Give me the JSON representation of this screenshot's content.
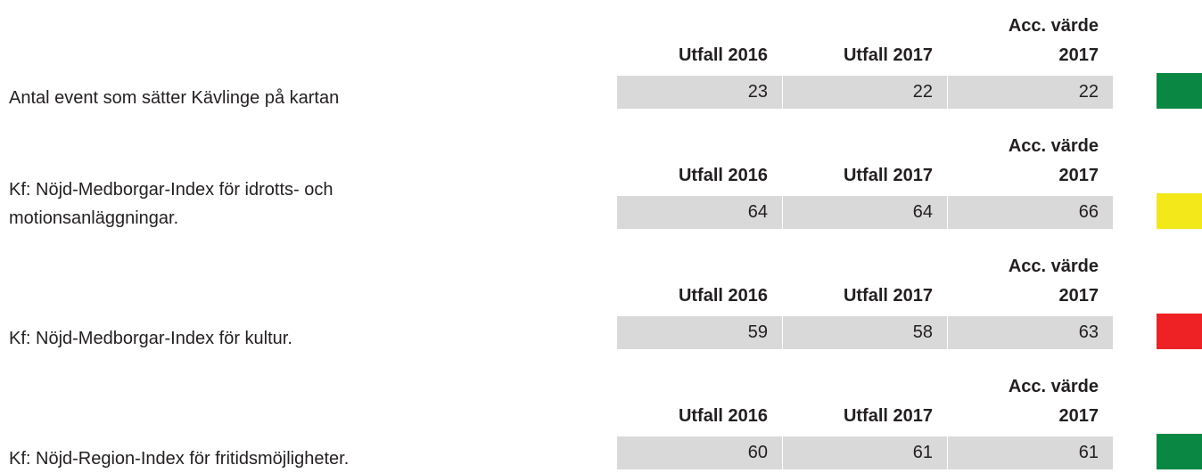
{
  "rows": [
    {
      "label": "Antal event som sätter Kävlinge på kartan",
      "headers": [
        "Utfall 2016",
        "Utfall 2017",
        "Acc. värde 2017"
      ],
      "values": [
        23,
        22,
        22
      ],
      "status_color": "#0a8843"
    },
    {
      "label": "Kf: Nöjd-Medborgar-Index för idrotts- och motionsanläggningar.",
      "headers": [
        "Utfall 2016",
        "Utfall 2017",
        "Acc. värde 2017"
      ],
      "values": [
        64,
        64,
        66
      ],
      "status_color": "#f2e81a"
    },
    {
      "label": "Kf: Nöjd-Medborgar-Index för kultur.",
      "headers": [
        "Utfall 2016",
        "Utfall 2017",
        "Acc. värde 2017"
      ],
      "values": [
        59,
        58,
        63
      ],
      "status_color": "#ee2224"
    },
    {
      "label": "Kf: Nöjd-Region-Index för fritidsmöjligheter.",
      "headers": [
        "Utfall 2016",
        "Utfall 2017",
        "Acc. värde 2017"
      ],
      "values": [
        60,
        61,
        61
      ],
      "status_color": "#0a8843"
    }
  ]
}
